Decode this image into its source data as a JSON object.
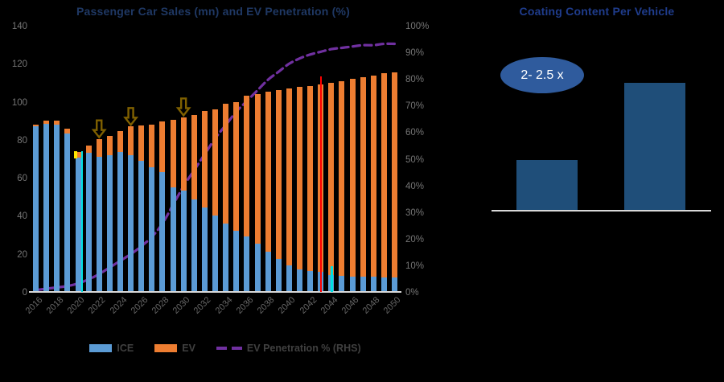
{
  "palette": {
    "background": "#000000",
    "ice_blue": "#5B9BD5",
    "ev_orange": "#ED7D31",
    "penetration_purple": "#7030A0",
    "left_title_navy": "#1F3864",
    "right_title_blue": "#1F3C8C",
    "axis_text_gray": "#757575",
    "legend_text_gray": "#404040",
    "axis_line_gray": "#D9D9D9",
    "coating_bar_blue": "#1F4E79",
    "callout_ellipse_blue": "#2F5B9D",
    "arrow_olive": "#7F6000"
  },
  "left_chart": {
    "title": "Passenger Car Sales (mn) and EV Penetration (%)"
  },
  "right_chart": {
    "title": "Coating Content Per Vehicle",
    "callout": "2- 2.5 x"
  },
  "legend": [
    {
      "label": "ICE",
      "color": "#5B9BD5",
      "type": "swatch"
    },
    {
      "label": "EV",
      "color": "#ED7D31",
      "type": "swatch"
    },
    {
      "label": "EV Penetration % (RHS)",
      "color": "#7030A0",
      "type": "dashes"
    }
  ],
  "screen_artifacts": [
    {
      "name": "yellow-tick-2020",
      "color": "#FFE600"
    },
    {
      "name": "cyan-vertical-line-2020",
      "color": "#00E1E1"
    },
    {
      "name": "red-vertical-line-2043",
      "color": "#FF0000"
    },
    {
      "name": "cyan-tick-2044",
      "color": "#00E1E1"
    }
  ],
  "chart_data": [
    {
      "type": "bar",
      "subtype": "stacked-bars-with-line",
      "title": "Passenger Car Sales (mn) and EV Penetration (%)",
      "x": [
        2016,
        2017,
        2018,
        2019,
        2020,
        2021,
        2022,
        2023,
        2024,
        2025,
        2026,
        2027,
        2028,
        2029,
        2030,
        2031,
        2032,
        2033,
        2034,
        2035,
        2036,
        2037,
        2038,
        2039,
        2040,
        2041,
        2042,
        2043,
        2044,
        2045,
        2046,
        2047,
        2048,
        2049,
        2050
      ],
      "series": [
        {
          "name": "ICE",
          "role": "bar",
          "stack": true,
          "color": "#5B9BD5",
          "values": [
            87,
            88.5,
            88,
            83.5,
            70.5,
            73,
            71,
            72,
            73.5,
            72,
            69,
            65.5,
            63,
            55,
            53.5,
            48.5,
            44.5,
            40,
            36,
            32,
            29,
            25.5,
            21,
            17.5,
            14,
            12,
            11,
            10.5,
            9,
            8.5,
            8,
            8,
            8,
            7.5,
            7.5
          ]
        },
        {
          "name": "EV",
          "role": "bar",
          "stack": true,
          "color": "#ED7D31",
          "values": [
            1,
            1.5,
            2,
            2.5,
            3,
            4,
            9.5,
            10,
            11,
            15,
            18.5,
            22.5,
            26.5,
            35.5,
            38.5,
            44.5,
            50.5,
            56,
            63,
            68,
            74,
            78.5,
            84.5,
            88.5,
            93,
            96,
            97.5,
            98.5,
            101,
            102.5,
            104,
            105,
            106,
            107.5,
            108
          ]
        },
        {
          "name": "EV Penetration % (RHS)",
          "role": "line",
          "axis": "right",
          "line_style": "dashed",
          "color": "#7030A0",
          "values": [
            1,
            1.5,
            2,
            2.5,
            3.5,
            5,
            7,
            9.5,
            12,
            14.5,
            17.5,
            21,
            26,
            33,
            40,
            46,
            52,
            58,
            63,
            68,
            72,
            76,
            80,
            83,
            86,
            88,
            89.5,
            90.5,
            91.5,
            92,
            92.5,
            93,
            93,
            93.5,
            93.5
          ]
        }
      ],
      "left_axis": {
        "min": 0,
        "max": 140,
        "ticks": [
          0,
          20,
          40,
          60,
          80,
          100,
          120,
          140
        ]
      },
      "right_axis": {
        "min": 0,
        "max": 100,
        "ticks": [
          0,
          10,
          20,
          30,
          40,
          50,
          60,
          70,
          80,
          90,
          100
        ],
        "format": "percent"
      },
      "x_tick_labels": [
        "2016",
        "2018",
        "2020",
        "2022",
        "2024",
        "2026",
        "2028",
        "2030",
        "2032",
        "2034",
        "2036",
        "2038",
        "2040",
        "2042",
        "2044",
        "2046",
        "2048",
        "2050"
      ],
      "arrow_annotation_years": [
        2022,
        2025,
        2030
      ],
      "legend_position": "bottom",
      "grid": false
    },
    {
      "type": "bar",
      "title": "Coating Content Per Vehicle",
      "values": [
        1,
        2.5
      ],
      "value_unit": "relative (x)",
      "bar_color": "#1F4E79",
      "callout": "2- 2.5 x",
      "grid": false
    }
  ]
}
